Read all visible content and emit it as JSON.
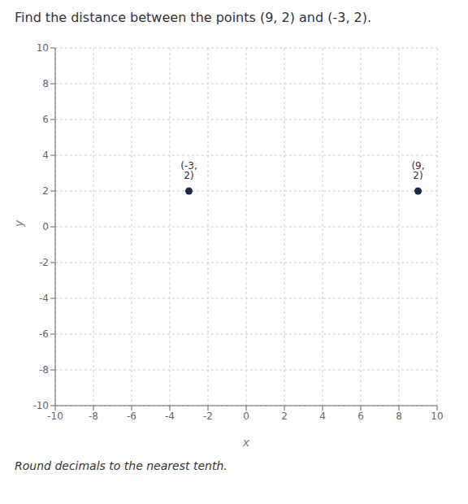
{
  "chart_data": {
    "type": "scatter",
    "title": "Find the distance between the points (9, 2) and (-3, 2).",
    "subtitle": "Round decimals to the nearest tenth.",
    "x_label": "x",
    "y_label": "y",
    "x": [
      9,
      -3
    ],
    "values": [
      2,
      2
    ],
    "value_labels": [
      "(9, 2)",
      "(-3, 2)"
    ],
    "data_labels": true,
    "color": "#1a2a4a",
    "xlim": [
      -10,
      10
    ],
    "ylim": [
      -10,
      10
    ],
    "xticks": [
      -10,
      -8,
      -6,
      -4,
      -2,
      0,
      2,
      4,
      6,
      8,
      10
    ],
    "yticks": [
      -10,
      -8,
      -6,
      -4,
      -2,
      0,
      2,
      4,
      6,
      8,
      10
    ],
    "grid": true
  }
}
